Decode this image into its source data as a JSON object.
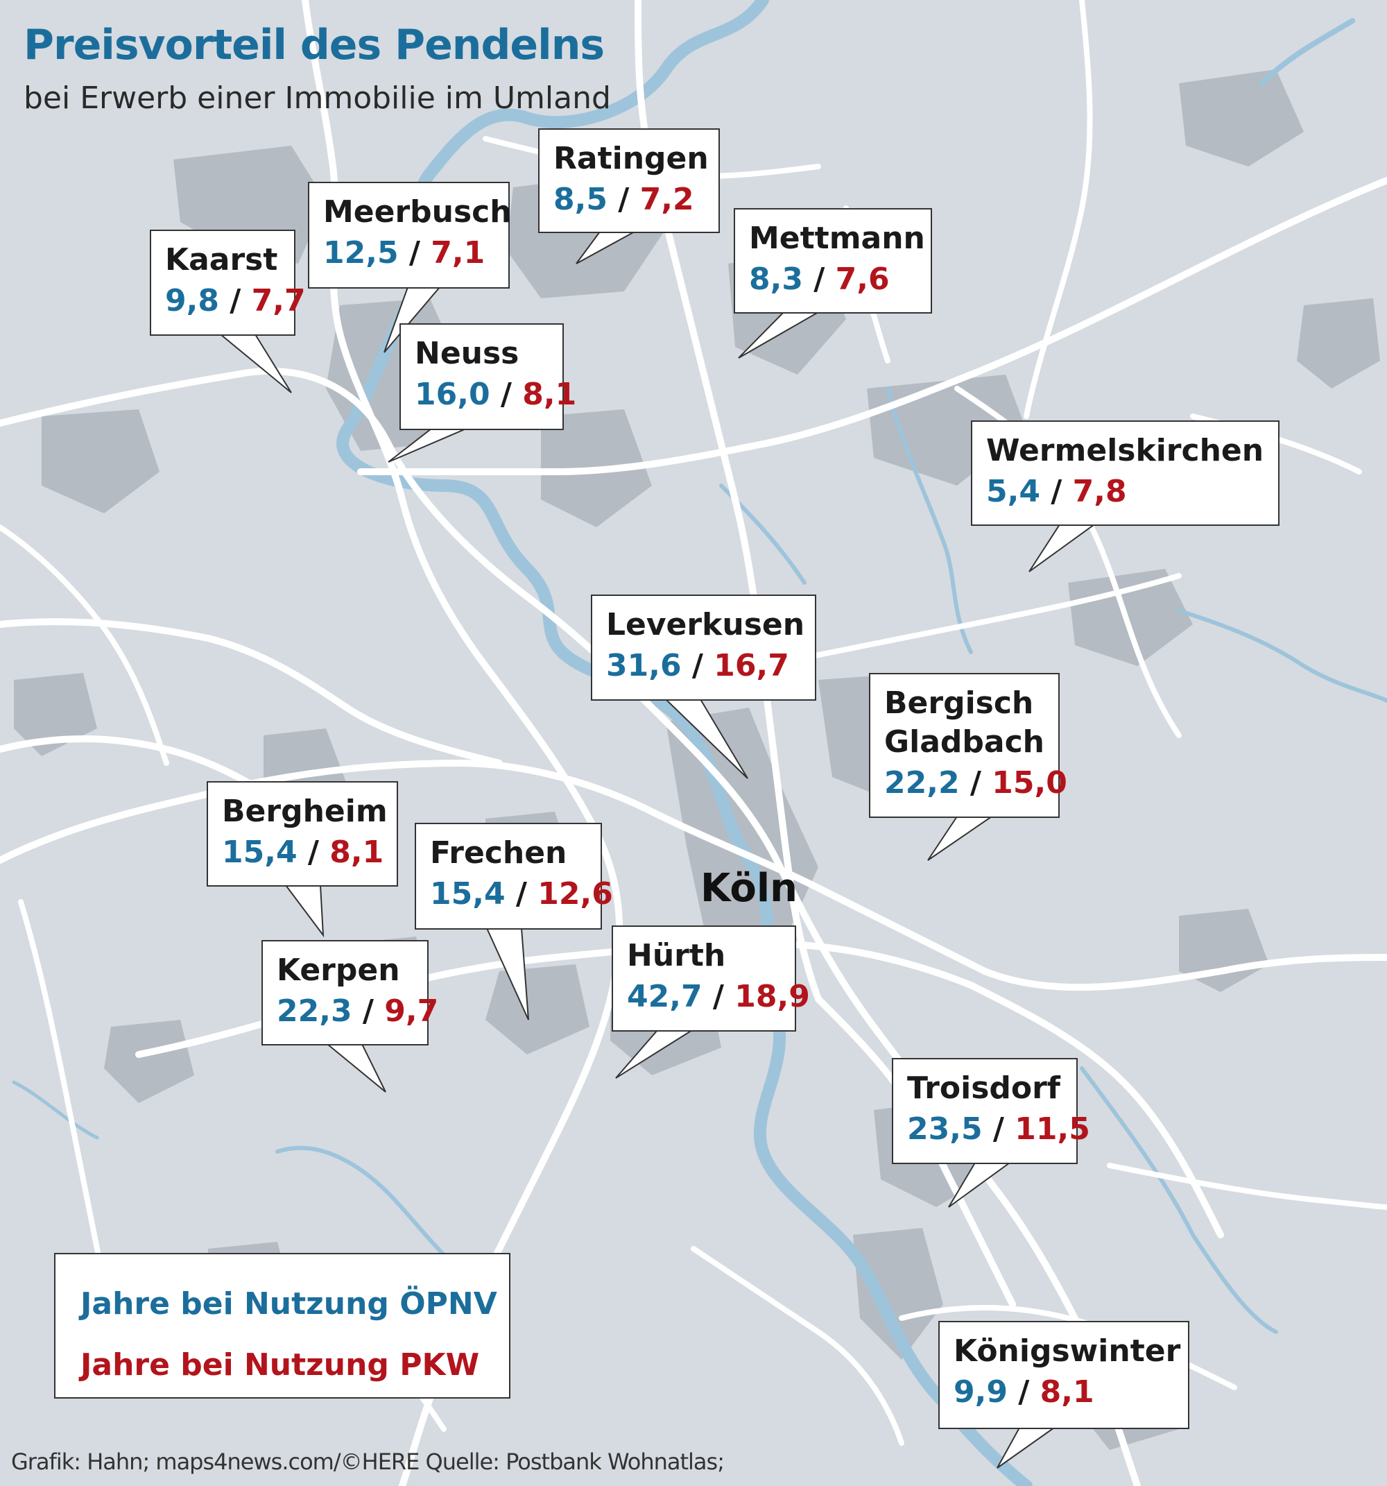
{
  "title": "Preisvorteil des Pendelns",
  "subtitle": "bei Erwerb einer Immobilie im Umland",
  "center_city": "Köln",
  "colors": {
    "oepnv": "#1b6e9c",
    "pkw": "#b3141c",
    "land": "#d5dbe0",
    "urban": "#b4bbc2",
    "water": "#9ec4dc",
    "road": "#ffffff"
  },
  "places": [
    {
      "name": "Ratingen",
      "oepnv": "8,5",
      "pkw": "7,2"
    },
    {
      "name": "Meerbusch",
      "oepnv": "12,5",
      "pkw": "7,1"
    },
    {
      "name": "Kaarst",
      "oepnv": "9,8",
      "pkw": "7,7"
    },
    {
      "name": "Mettmann",
      "oepnv": "8,3",
      "pkw": "7,6"
    },
    {
      "name": "Neuss",
      "oepnv": "16,0",
      "pkw": "8,1"
    },
    {
      "name": "Wermelskirchen",
      "oepnv": "5,4",
      "pkw": "7,8"
    },
    {
      "name": "Leverkusen",
      "oepnv": "31,6",
      "pkw": "16,7"
    },
    {
      "name": "Bergisch",
      "name2": "Gladbach",
      "oepnv": "22,2",
      "pkw": "15,0"
    },
    {
      "name": "Bergheim",
      "oepnv": "15,4",
      "pkw": "8,1"
    },
    {
      "name": "Frechen",
      "oepnv": "15,4",
      "pkw": "12,6"
    },
    {
      "name": "Kerpen",
      "oepnv": "22,3",
      "pkw": "9,7"
    },
    {
      "name": "Hürth",
      "oepnv": "42,7",
      "pkw": "18,9"
    },
    {
      "name": "Troisdorf",
      "oepnv": "23,5",
      "pkw": "11,5"
    },
    {
      "name": "Königswinter",
      "oepnv": "9,9",
      "pkw": "8,1"
    }
  ],
  "legend": {
    "oepnv_label": "Jahre bei Nutzung ÖPNV",
    "pkw_label": "Jahre bei Nutzung PKW"
  },
  "source": "Grafik: Hahn; maps4news.com/©HERE Quelle: Postbank Wohnatlas;"
}
